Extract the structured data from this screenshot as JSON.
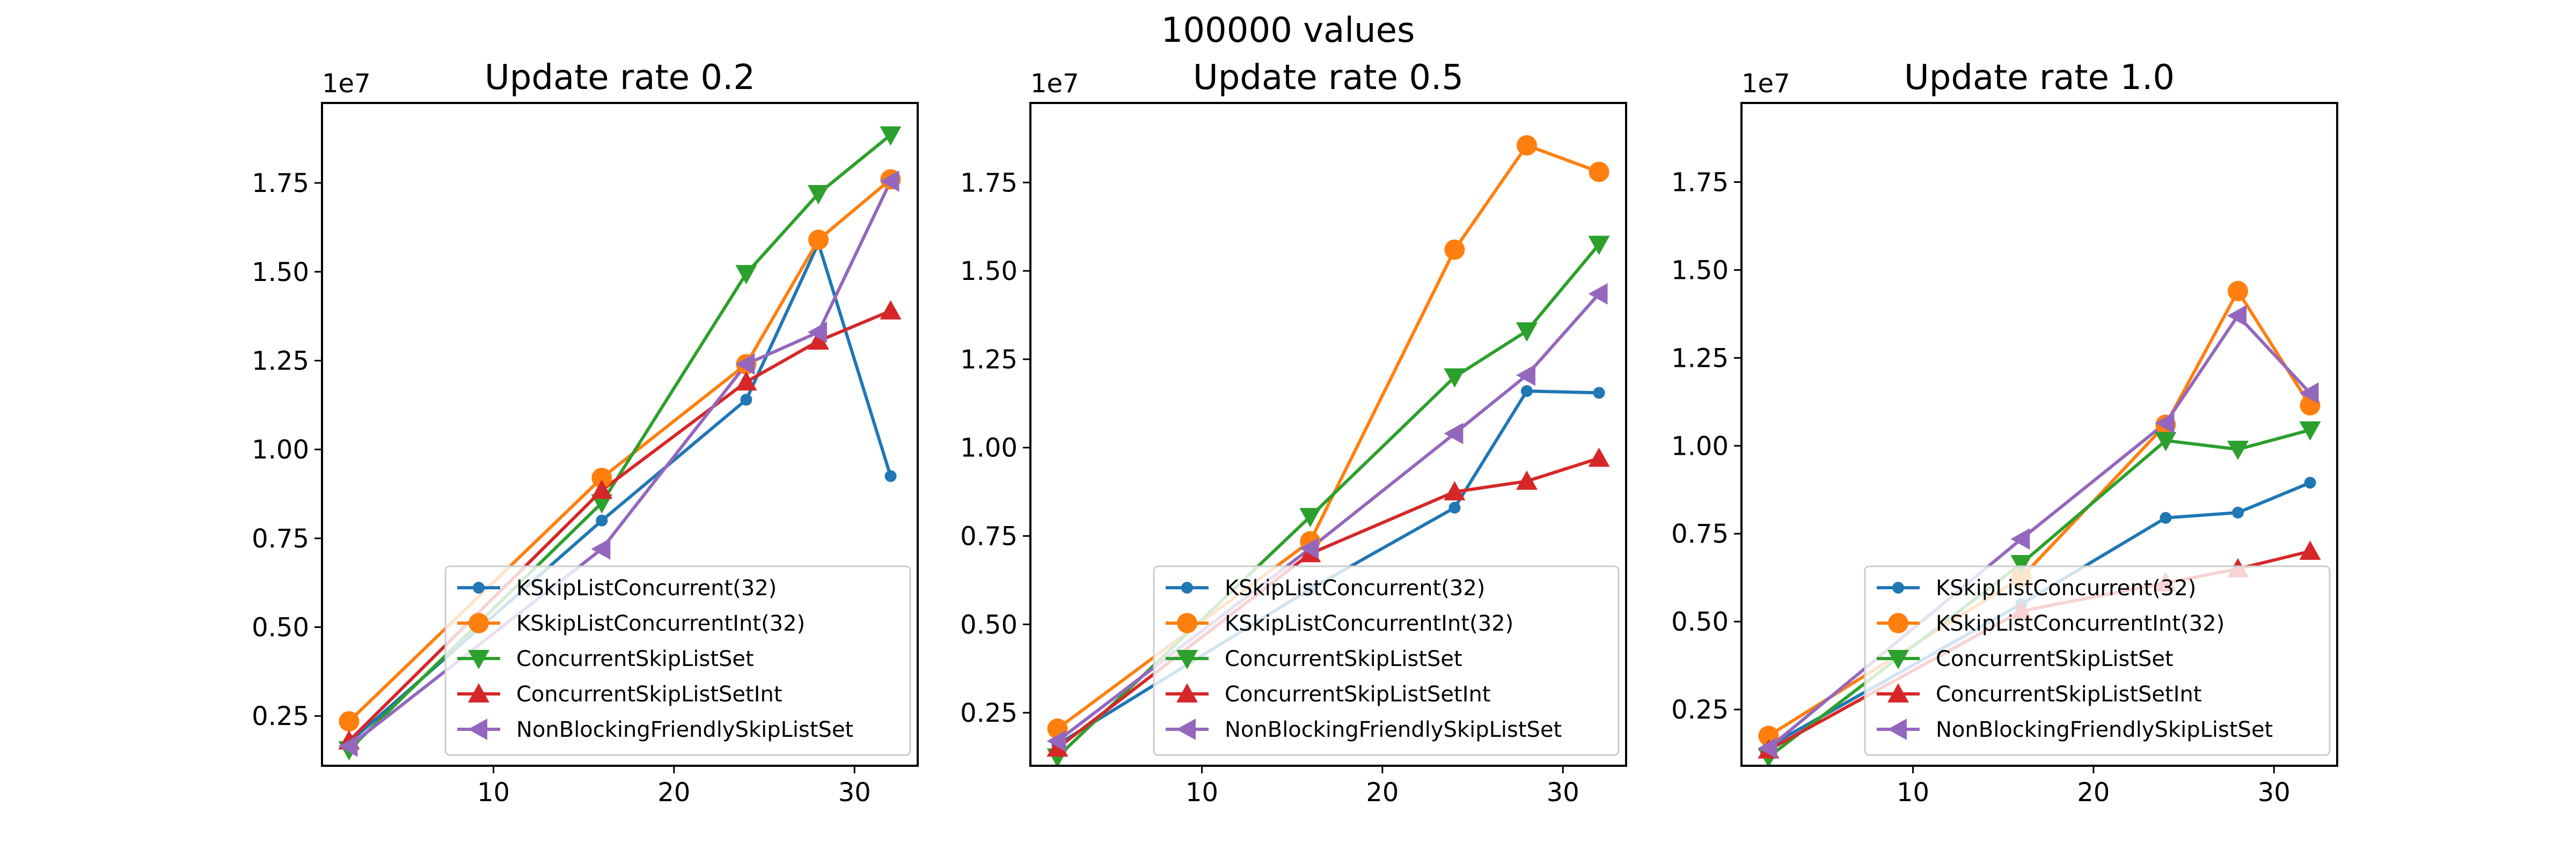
{
  "suptitle": "100000 values",
  "chart_data": [
    {
      "type": "line",
      "title": "Update rate 0.2",
      "xlabel": "",
      "ylabel": "",
      "offset_text": "1e7",
      "xlim": [
        0.5,
        33.5
      ],
      "ylim": [
        1.1,
        19.75
      ],
      "xticks": [
        10,
        20,
        30
      ],
      "yticks": [
        2.5,
        5.0,
        7.5,
        10.0,
        12.5,
        15.0,
        17.5
      ],
      "ytick_labels": [
        "0.25",
        "0.50",
        "0.75",
        "1.00",
        "1.25",
        "1.50",
        "1.75"
      ],
      "y_unit_note": "y values in units of 1e6 (axis shows 1e7 offset)",
      "legend_position": "lower right",
      "grid": false,
      "series": [
        {
          "name": "KSkipListConcurrent(32)",
          "color": "#1f77b4",
          "marker": "point",
          "x": [
            2,
            16,
            24,
            28,
            32
          ],
          "y": [
            1.75,
            8.0,
            11.4,
            15.8,
            9.25
          ]
        },
        {
          "name": "KSkipListConcurrentInt(32)",
          "color": "#ff7f0e",
          "marker": "circle",
          "x": [
            2,
            16,
            24,
            28,
            32
          ],
          "y": [
            2.35,
            9.2,
            12.4,
            15.9,
            17.6
          ]
        },
        {
          "name": "ConcurrentSkipListSet",
          "color": "#2ca02c",
          "marker": "triangle-down",
          "x": [
            2,
            16,
            24,
            28,
            32
          ],
          "y": [
            1.55,
            8.5,
            14.95,
            17.2,
            18.85
          ]
        },
        {
          "name": "ConcurrentSkipListSetInt",
          "color": "#d62728",
          "marker": "triangle-up",
          "x": [
            2,
            16,
            24,
            28,
            32
          ],
          "y": [
            1.8,
            8.85,
            11.9,
            13.05,
            13.9
          ]
        },
        {
          "name": "NonBlockingFriendlySkipListSet",
          "color": "#9467bd",
          "marker": "triangle-left",
          "x": [
            2,
            16,
            24,
            28,
            32
          ],
          "y": [
            1.65,
            7.2,
            12.4,
            13.3,
            17.55
          ]
        }
      ]
    },
    {
      "type": "line",
      "title": "Update rate 0.5",
      "xlabel": "",
      "ylabel": "",
      "offset_text": "1e7",
      "xlim": [
        0.5,
        33.5
      ],
      "ylim": [
        1.0,
        19.75
      ],
      "xticks": [
        10,
        20,
        30
      ],
      "yticks": [
        2.5,
        5.0,
        7.5,
        10.0,
        12.5,
        15.0,
        17.5
      ],
      "ytick_labels": [
        "0.25",
        "0.50",
        "0.75",
        "1.00",
        "1.25",
        "1.50",
        "1.75"
      ],
      "y_unit_note": "y values in units of 1e6 (axis shows 1e7 offset)",
      "legend_position": "lower right",
      "grid": false,
      "series": [
        {
          "name": "KSkipListConcurrent(32)",
          "color": "#1f77b4",
          "marker": "point",
          "x": [
            2,
            16,
            24,
            28,
            32
          ],
          "y": [
            1.6,
            6.0,
            8.3,
            11.6,
            11.55
          ]
        },
        {
          "name": "KSkipListConcurrentInt(32)",
          "color": "#ff7f0e",
          "marker": "circle",
          "x": [
            2,
            16,
            24,
            28,
            32
          ],
          "y": [
            2.05,
            7.35,
            15.6,
            18.55,
            17.8
          ]
        },
        {
          "name": "ConcurrentSkipListSet",
          "color": "#2ca02c",
          "marker": "triangle-down",
          "x": [
            2,
            16,
            24,
            28,
            32
          ],
          "y": [
            1.25,
            8.05,
            12.0,
            13.3,
            15.75
          ]
        },
        {
          "name": "ConcurrentSkipListSetInt",
          "color": "#d62728",
          "marker": "triangle-up",
          "x": [
            2,
            16,
            24,
            28,
            32
          ],
          "y": [
            1.5,
            7.0,
            8.75,
            9.05,
            9.7
          ]
        },
        {
          "name": "NonBlockingFriendlySkipListSet",
          "color": "#9467bd",
          "marker": "triangle-left",
          "x": [
            2,
            16,
            24,
            28,
            32
          ],
          "y": [
            1.7,
            7.15,
            10.4,
            12.05,
            14.35
          ]
        }
      ]
    },
    {
      "type": "line",
      "title": "Update rate 1.0",
      "xlabel": "",
      "ylabel": "",
      "offset_text": "1e7",
      "xlim": [
        0.5,
        33.5
      ],
      "ylim": [
        0.9,
        19.75
      ],
      "xticks": [
        10,
        20,
        30
      ],
      "yticks": [
        2.5,
        5.0,
        7.5,
        10.0,
        12.5,
        15.0,
        17.5
      ],
      "ytick_labels": [
        "0.25",
        "0.50",
        "0.75",
        "1.00",
        "1.25",
        "1.50",
        "1.75"
      ],
      "y_unit_note": "y values in units of 1e6 (axis shows 1e7 offset)",
      "legend_position": "lower right",
      "grid": false,
      "series": [
        {
          "name": "KSkipListConcurrent(32)",
          "color": "#1f77b4",
          "marker": "point",
          "x": [
            2,
            16,
            24,
            28,
            32
          ],
          "y": [
            1.45,
            5.5,
            7.95,
            8.1,
            8.95
          ]
        },
        {
          "name": "KSkipListConcurrentInt(32)",
          "color": "#ff7f0e",
          "marker": "circle",
          "x": [
            2,
            16,
            24,
            28,
            32
          ],
          "y": [
            1.75,
            6.25,
            10.6,
            14.4,
            11.15
          ]
        },
        {
          "name": "ConcurrentSkipListSet",
          "color": "#2ca02c",
          "marker": "triangle-down",
          "x": [
            2,
            16,
            24,
            28,
            32
          ],
          "y": [
            1.15,
            6.65,
            10.15,
            9.9,
            10.45
          ]
        },
        {
          "name": "ConcurrentSkipListSetInt",
          "color": "#d62728",
          "marker": "triangle-up",
          "x": [
            2,
            16,
            24,
            28,
            32
          ],
          "y": [
            1.35,
            5.3,
            6.1,
            6.5,
            7.0
          ]
        },
        {
          "name": "NonBlockingFriendlySkipListSet",
          "color": "#9467bd",
          "marker": "triangle-left",
          "x": [
            2,
            16,
            24,
            28,
            32
          ],
          "y": [
            1.4,
            7.35,
            10.65,
            13.7,
            11.5
          ]
        }
      ]
    }
  ]
}
